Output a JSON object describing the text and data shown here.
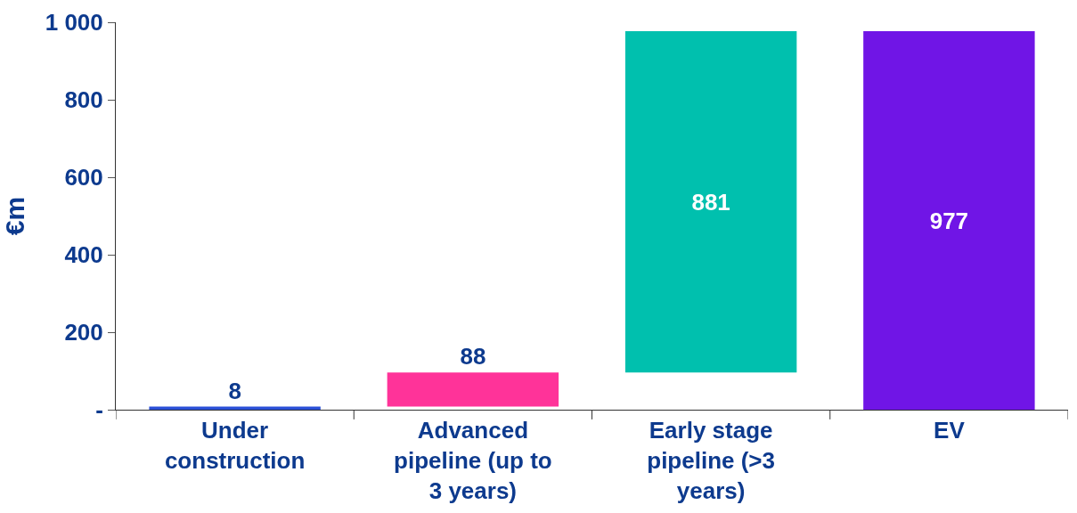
{
  "chart_data": {
    "type": "bar",
    "ylabel": "€m",
    "categories": [
      "Under construction",
      "Advanced pipeline (up to 3 years)",
      "Early stage pipeline (>3 years)",
      "EV"
    ],
    "values": [
      8,
      88,
      881,
      977
    ],
    "base": [
      0,
      8,
      96,
      0
    ],
    "colors": [
      "#2b50d8",
      "#ff3399",
      "#00c0ae",
      "#7015e6"
    ],
    "ylim": [
      0,
      1000
    ],
    "yticks": [
      {
        "value": 0,
        "label": "-"
      },
      200,
      400,
      600,
      800,
      {
        "value": 1000,
        "label": "1 000"
      }
    ],
    "data_labels": true
  }
}
